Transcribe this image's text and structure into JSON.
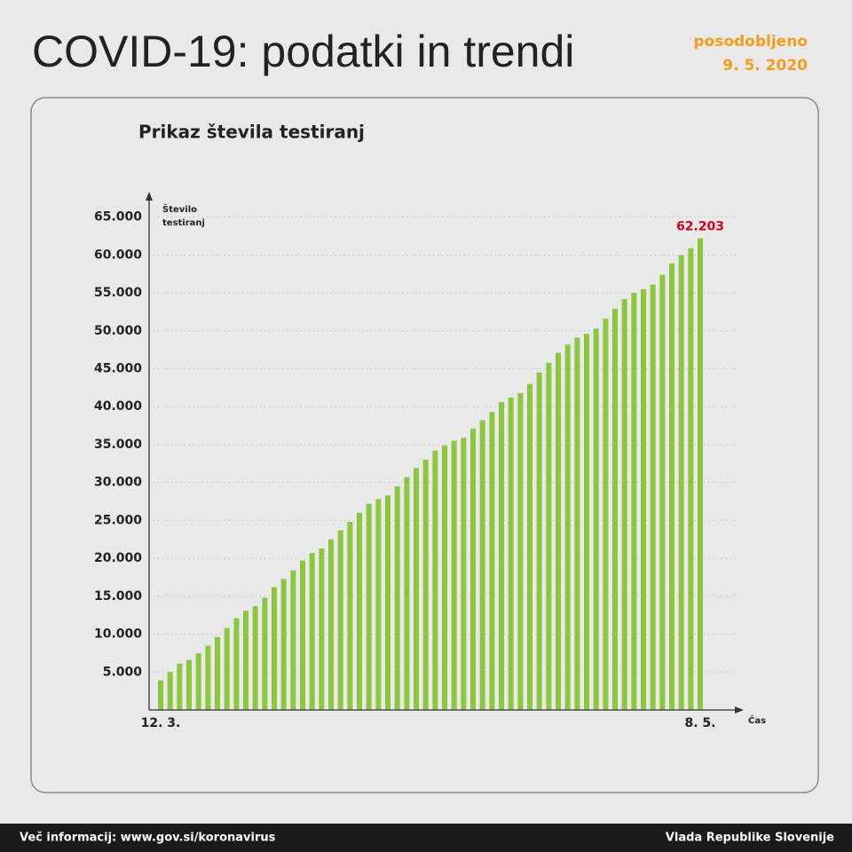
{
  "header": {
    "title": "COVID-19: podatki in trendi",
    "updated_label": "posodobljeno",
    "updated_date": "9. 5. 2020"
  },
  "footer": {
    "left": "Več informacij: www.gov.si/koronavirus",
    "right": "Vlada Republike Slovenije"
  },
  "chart_data": {
    "type": "bar",
    "title": "Prikaz števila testiranj",
    "y_label": [
      "Število",
      "testiranj"
    ],
    "x_label": "Čas",
    "categories": [
      "12. 3.",
      null,
      null,
      null,
      null,
      null,
      null,
      null,
      null,
      null,
      null,
      null,
      null,
      null,
      null,
      null,
      null,
      null,
      null,
      null,
      null,
      null,
      null,
      null,
      null,
      null,
      null,
      null,
      null,
      null,
      null,
      null,
      null,
      null,
      null,
      null,
      null,
      null,
      null,
      null,
      null,
      null,
      null,
      null,
      null,
      null,
      null,
      null,
      null,
      null,
      null,
      null,
      null,
      null,
      null,
      null,
      null,
      "8. 5."
    ],
    "values": [
      3900,
      5000,
      6100,
      6600,
      7500,
      8500,
      9600,
      10800,
      12100,
      13100,
      13700,
      14800,
      16200,
      17300,
      18400,
      19700,
      20700,
      21300,
      22500,
      23700,
      24800,
      26000,
      27200,
      27800,
      28300,
      29500,
      30700,
      31900,
      33000,
      34200,
      34900,
      35500,
      35900,
      37100,
      38200,
      39300,
      40600,
      41200,
      41800,
      43000,
      44500,
      45800,
      47100,
      48200,
      49100,
      49600,
      50300,
      51600,
      52900,
      54200,
      55000,
      55500,
      56100,
      57400,
      58900,
      60000,
      60900,
      62203
    ],
    "value_labels": [
      null,
      null,
      null,
      null,
      null,
      null,
      null,
      null,
      null,
      null,
      null,
      null,
      null,
      null,
      null,
      null,
      null,
      null,
      null,
      null,
      null,
      null,
      null,
      null,
      null,
      null,
      null,
      null,
      null,
      null,
      null,
      null,
      null,
      null,
      null,
      null,
      null,
      null,
      null,
      null,
      null,
      null,
      null,
      null,
      null,
      null,
      null,
      null,
      null,
      null,
      null,
      null,
      null,
      null,
      null,
      null,
      null,
      "62.203"
    ],
    "color": "#8cc63f",
    "label_color": "#d0021b",
    "ylim": [
      0,
      68000
    ],
    "yticks": [
      {
        "value": 5000,
        "label": "5.000"
      },
      {
        "value": 10000,
        "label": "10.000"
      },
      {
        "value": 15000,
        "label": "15.000"
      },
      {
        "value": 20000,
        "label": "20.000"
      },
      {
        "value": 25000,
        "label": "25.000"
      },
      {
        "value": 30000,
        "label": "30.000"
      },
      {
        "value": 35000,
        "label": "35.000"
      },
      {
        "value": 40000,
        "label": "40.000"
      },
      {
        "value": 45000,
        "label": "45.000"
      },
      {
        "value": 50000,
        "label": "50.000"
      },
      {
        "value": 55000,
        "label": "55.000"
      },
      {
        "value": 60000,
        "label": "60.000"
      },
      {
        "value": 65000,
        "label": "65.000"
      }
    ],
    "grid": true
  }
}
